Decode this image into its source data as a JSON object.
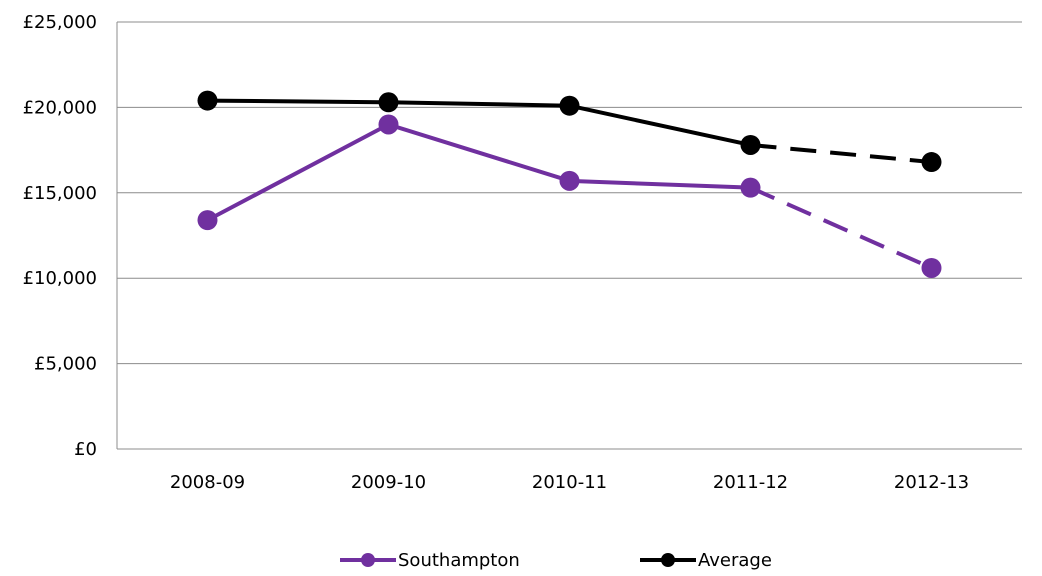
{
  "chart_data": {
    "type": "line",
    "title": "",
    "xlabel": "",
    "ylabel": "",
    "categories": [
      "2008-09",
      "2009-10",
      "2010-11",
      "2011-12",
      "2012-13"
    ],
    "ylim": [
      0,
      25000
    ],
    "yticks": [
      0,
      5000,
      10000,
      15000,
      20000,
      25000
    ],
    "ytick_labels": [
      "£0",
      "£5,000",
      "£10,000",
      "£15,000",
      "£20,000",
      "£25,000"
    ],
    "grid": "horizontal",
    "legend_position": "bottom",
    "projected_from_index": 3,
    "series": [
      {
        "name": "Southampton",
        "color": "#70309F",
        "values": [
          13400,
          19000,
          15700,
          15300,
          10600
        ]
      },
      {
        "name": "Average",
        "color": "#000000",
        "values": [
          20400,
          20300,
          20100,
          17800,
          16800
        ]
      }
    ]
  }
}
